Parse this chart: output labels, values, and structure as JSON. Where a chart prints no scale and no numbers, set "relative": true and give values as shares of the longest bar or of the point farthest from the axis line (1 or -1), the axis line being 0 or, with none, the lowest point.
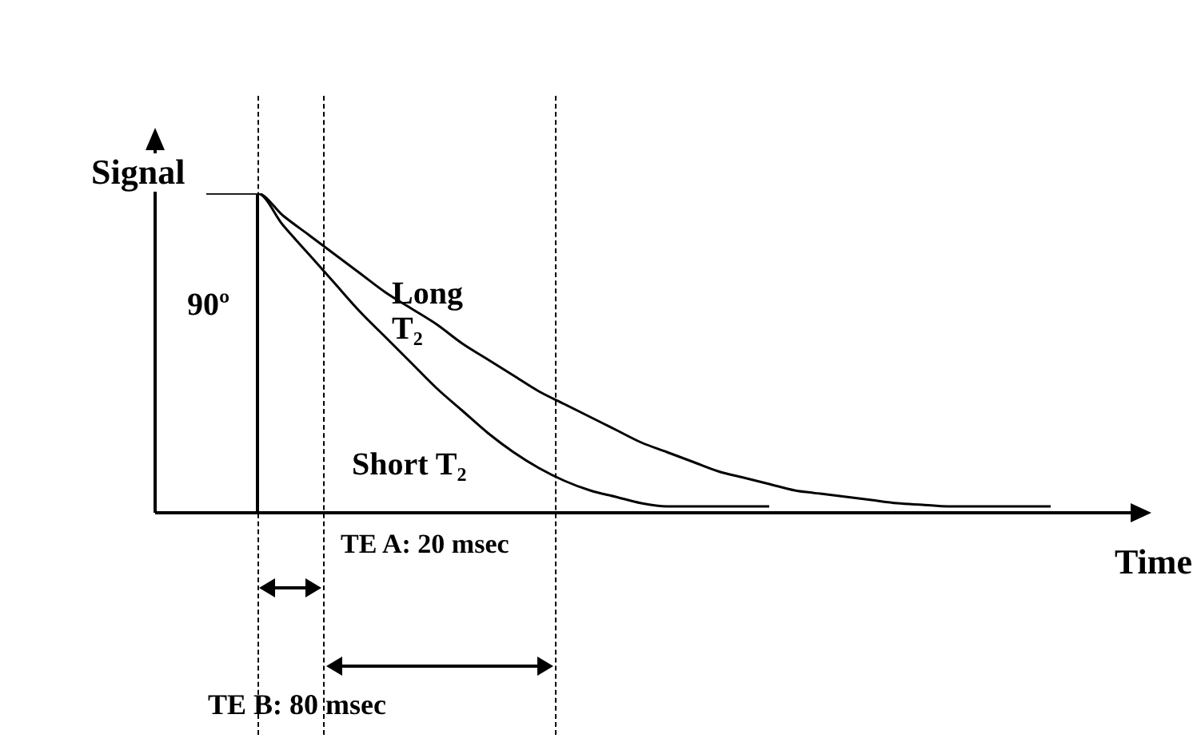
{
  "chart_data": {
    "type": "line",
    "xlabel": "Time",
    "ylabel": "Signal",
    "relative": true,
    "marker": "none",
    "categories": [
      null,
      null,
      null,
      null,
      null,
      null,
      null,
      null,
      null,
      null,
      null,
      null,
      null,
      null,
      null,
      null,
      null,
      null,
      null,
      null,
      null,
      null,
      null,
      null,
      null,
      null,
      null,
      null,
      null,
      null,
      null,
      null,
      null,
      null,
      null,
      null,
      null,
      null,
      null
    ],
    "series": [
      {
        "name": "Long T₂",
        "color": "#000000",
        "values": [
          null,
          null,
          1,
          1,
          1,
          0.93,
          0.87,
          0.81,
          0.75,
          0.69,
          0.64,
          0.59,
          0.53,
          0.48,
          0.43,
          0.38,
          0.34,
          0.3,
          0.26,
          0.22,
          0.19,
          0.16,
          0.13,
          0.11,
          0.09,
          0.07,
          0.06,
          0.05,
          0.04,
          0.03,
          0.025,
          0.02,
          0.02,
          0.02,
          0.02,
          0.02,
          null,
          null,
          null
        ]
      },
      {
        "name": "Short T₂",
        "color": "#000000",
        "values": [
          null,
          null,
          1,
          1,
          1,
          0.9,
          0.81,
          0.72,
          0.63,
          0.55,
          0.47,
          0.39,
          0.32,
          0.25,
          0.19,
          0.14,
          0.1,
          0.07,
          0.05,
          0.03,
          0.02,
          0.02,
          0.02,
          0.02,
          0.02,
          null,
          null,
          null,
          null,
          null,
          null,
          null,
          null,
          null,
          null,
          null,
          null,
          null,
          null
        ]
      }
    ],
    "annotations": [
      "90º",
      "TE A: 20 msec",
      "TE B: 80 msec"
    ]
  }
}
